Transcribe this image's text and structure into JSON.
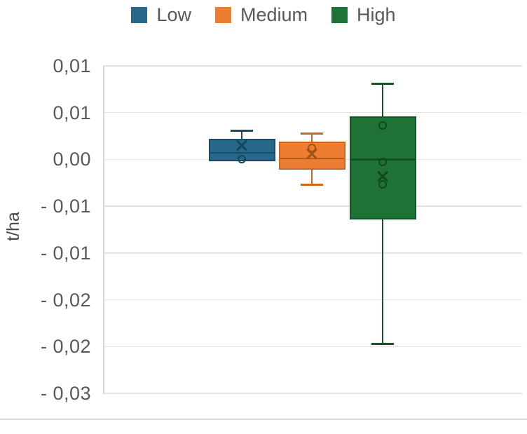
{
  "chart_data": {
    "type": "boxplot",
    "title": "",
    "xlabel": "",
    "ylabel": "t/ha",
    "legend_position": "top",
    "grid": true,
    "decimal_separator": ",",
    "y_axis": {
      "max": 0.01,
      "min": -0.025,
      "tick_step": 0.005,
      "tick_labels": [
        "0,01",
        "0,01",
        "0,00",
        "- 0,01",
        "- 0,01",
        "- 0,02",
        "- 0,02",
        "- 0,03"
      ]
    },
    "series": [
      {
        "name": "Low",
        "color": "#26678a",
        "border_color": "#1a4c67",
        "marker_color": "#16455e",
        "stats": {
          "whisker_low": -0.0002,
          "q1": -0.0002,
          "median": 0.0007,
          "q3": 0.0022,
          "whisker_high": 0.0031,
          "mean": 0.0015
        },
        "points": [
          0.0
        ]
      },
      {
        "name": "Medium",
        "color": "#ed7d31",
        "border_color": "#cf661f",
        "marker_color": "#a05317",
        "stats": {
          "whisker_low": -0.0027,
          "q1": -0.0011,
          "median": 0.0001,
          "q3": 0.0019,
          "whisker_high": 0.0028,
          "mean": 0.0006
        },
        "points": [
          0.0012
        ]
      },
      {
        "name": "High",
        "color": "#1e7235",
        "border_color": "#155527",
        "marker_color": "#12481f",
        "stats": {
          "whisker_low": -0.0197,
          "q1": -0.0064,
          "median": 0.0,
          "q3": 0.0046,
          "whisker_high": 0.0081,
          "mean": -0.0018
        },
        "points": [
          0.0036,
          -0.0003,
          -0.0027
        ]
      }
    ],
    "colors": {
      "text": "#595959",
      "grid": "#e4e4e4",
      "axis": "#d6d6d6"
    }
  }
}
